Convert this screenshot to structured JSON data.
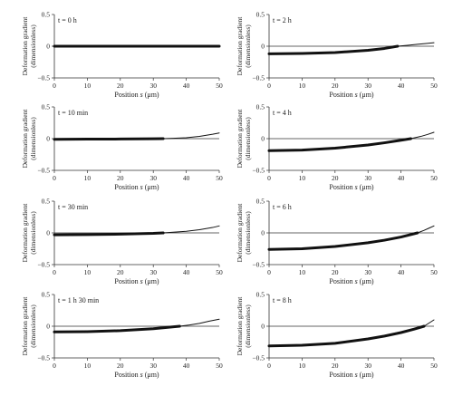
{
  "figure": {
    "ylabel_line1": "Deformation gradient",
    "ylabel_line2": "(dimensionless)",
    "xlabel": "Position s (μm)",
    "xlabel_main": "Position ",
    "xlabel_var": "s",
    "xlabel_unit": " (μm)"
  },
  "chart_data": [
    {
      "type": "line",
      "panel_label": "t = 0 h",
      "xlim": [
        0,
        50
      ],
      "ylim": [
        -0.5,
        0.5
      ],
      "xticks": [
        "0",
        "10",
        "20",
        "30",
        "40",
        "50"
      ],
      "yticks": [
        "0.5",
        "0",
        "−0.5"
      ],
      "series": [
        {
          "x": [
            0,
            10,
            20,
            30,
            40,
            50
          ],
          "y": [
            0,
            0,
            0,
            0,
            0,
            0
          ],
          "style": "thick"
        }
      ]
    },
    {
      "type": "line",
      "panel_label": "t = 2 h",
      "xlim": [
        0,
        50
      ],
      "ylim": [
        -0.5,
        0.5
      ],
      "xticks": [
        "0",
        "10",
        "20",
        "30",
        "40",
        "50"
      ],
      "yticks": [
        "0.5",
        "0",
        "−0.5"
      ],
      "series": [
        {
          "x": [
            0,
            10,
            20,
            30,
            35,
            39
          ],
          "y": [
            -0.12,
            -0.115,
            -0.1,
            -0.065,
            -0.035,
            0.0
          ],
          "style": "thick"
        },
        {
          "x": [
            39,
            42,
            45,
            48,
            50
          ],
          "y": [
            0.0,
            0.015,
            0.03,
            0.045,
            0.055
          ],
          "style": "thin"
        }
      ]
    },
    {
      "type": "line",
      "panel_label": "t = 10 min",
      "xlim": [
        0,
        50
      ],
      "ylim": [
        -0.5,
        0.5
      ],
      "xticks": [
        "0",
        "10",
        "20",
        "30",
        "40",
        "50"
      ],
      "yticks": [
        "0.5",
        "0",
        "−0.5"
      ],
      "series": [
        {
          "x": [
            0,
            10,
            20,
            30,
            33
          ],
          "y": [
            -0.01,
            -0.008,
            -0.006,
            -0.002,
            0.0
          ],
          "style": "thick"
        },
        {
          "x": [
            33,
            36,
            40,
            44,
            48,
            50
          ],
          "y": [
            0.0,
            0.005,
            0.015,
            0.035,
            0.07,
            0.09
          ],
          "style": "thin"
        }
      ]
    },
    {
      "type": "line",
      "panel_label": "t = 4 h",
      "xlim": [
        0,
        50
      ],
      "ylim": [
        -0.5,
        0.5
      ],
      "xticks": [
        "0",
        "10",
        "20",
        "30",
        "40",
        "50"
      ],
      "yticks": [
        "0.5",
        "0",
        "−0.5"
      ],
      "series": [
        {
          "x": [
            0,
            10,
            20,
            30,
            35,
            40,
            43
          ],
          "y": [
            -0.19,
            -0.18,
            -0.15,
            -0.1,
            -0.065,
            -0.025,
            0.0
          ],
          "style": "thick"
        },
        {
          "x": [
            43,
            46,
            48,
            50
          ],
          "y": [
            0.0,
            0.035,
            0.065,
            0.1
          ],
          "style": "thin"
        }
      ]
    },
    {
      "type": "line",
      "panel_label": "t = 30 min",
      "xlim": [
        0,
        50
      ],
      "ylim": [
        -0.5,
        0.5
      ],
      "xticks": [
        "0",
        "10",
        "20",
        "30",
        "40",
        "50"
      ],
      "yticks": [
        "0.5",
        "0",
        "−0.5"
      ],
      "series": [
        {
          "x": [
            0,
            10,
            20,
            30,
            33
          ],
          "y": [
            -0.03,
            -0.027,
            -0.02,
            -0.008,
            0.0
          ],
          "style": "thick"
        },
        {
          "x": [
            33,
            36,
            40,
            44,
            48,
            50
          ],
          "y": [
            0.0,
            0.01,
            0.025,
            0.05,
            0.085,
            0.11
          ],
          "style": "thin"
        }
      ]
    },
    {
      "type": "line",
      "panel_label": "t = 6 h",
      "xlim": [
        0,
        50
      ],
      "ylim": [
        -0.5,
        0.5
      ],
      "xticks": [
        "0",
        "10",
        "20",
        "30",
        "40",
        "50"
      ],
      "yticks": [
        "0.5",
        "0",
        "−0.5"
      ],
      "series": [
        {
          "x": [
            0,
            10,
            20,
            30,
            35,
            40,
            45
          ],
          "y": [
            -0.26,
            -0.25,
            -0.215,
            -0.155,
            -0.115,
            -0.065,
            0.0
          ],
          "style": "thick"
        },
        {
          "x": [
            45,
            47,
            48.5,
            50
          ],
          "y": [
            0.0,
            0.04,
            0.075,
            0.11
          ],
          "style": "thin"
        }
      ]
    },
    {
      "type": "line",
      "panel_label": "t = 1 h 30 min",
      "xlim": [
        0,
        50
      ],
      "ylim": [
        -0.5,
        0.5
      ],
      "xticks": [
        "0",
        "10",
        "20",
        "30",
        "40",
        "50"
      ],
      "yticks": [
        "0.5",
        "0",
        "−0.5"
      ],
      "series": [
        {
          "x": [
            0,
            10,
            20,
            30,
            34,
            38
          ],
          "y": [
            -0.09,
            -0.085,
            -0.07,
            -0.04,
            -0.02,
            0.0
          ],
          "style": "thick"
        },
        {
          "x": [
            38,
            41,
            44,
            47,
            50
          ],
          "y": [
            0.0,
            0.02,
            0.045,
            0.08,
            0.11
          ],
          "style": "thin"
        }
      ]
    },
    {
      "type": "line",
      "panel_label": "t = 8 h",
      "xlim": [
        0,
        50
      ],
      "ylim": [
        -0.5,
        0.5
      ],
      "xticks": [
        "0",
        "10",
        "20",
        "30",
        "40",
        "50"
      ],
      "yticks": [
        "0.5",
        "0",
        "−0.5"
      ],
      "series": [
        {
          "x": [
            0,
            10,
            20,
            30,
            35,
            40,
            44,
            47
          ],
          "y": [
            -0.31,
            -0.3,
            -0.27,
            -0.2,
            -0.155,
            -0.1,
            -0.045,
            0.0
          ],
          "style": "thick"
        },
        {
          "x": [
            47,
            48.5,
            50
          ],
          "y": [
            0.0,
            0.05,
            0.1
          ],
          "style": "thin"
        }
      ]
    }
  ]
}
